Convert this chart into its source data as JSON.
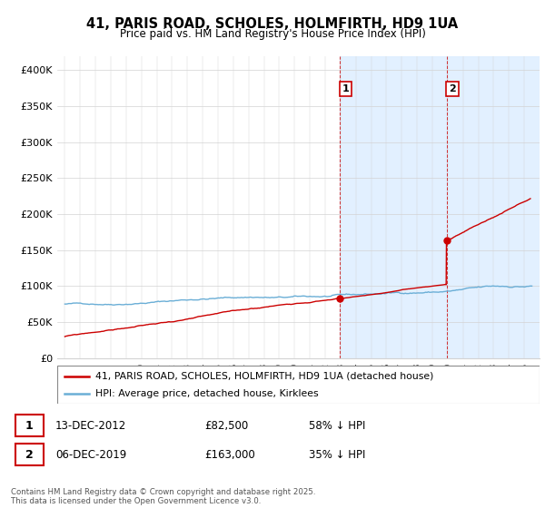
{
  "title": "41, PARIS ROAD, SCHOLES, HOLMFIRTH, HD9 1UA",
  "subtitle": "Price paid vs. HM Land Registry's House Price Index (HPI)",
  "legend_line1": "41, PARIS ROAD, SCHOLES, HOLMFIRTH, HD9 1UA (detached house)",
  "legend_line2": "HPI: Average price, detached house, Kirklees",
  "annotation1_label": "1",
  "annotation1_date": "13-DEC-2012",
  "annotation1_price": "£82,500",
  "annotation1_hpi": "58% ↓ HPI",
  "annotation2_label": "2",
  "annotation2_date": "06-DEC-2019",
  "annotation2_price": "£163,000",
  "annotation2_hpi": "35% ↓ HPI",
  "footnote": "Contains HM Land Registry data © Crown copyright and database right 2025.\nThis data is licensed under the Open Government Licence v3.0.",
  "hpi_color": "#6aaed6",
  "price_color": "#cc0000",
  "background_color": "#ffffff",
  "highlight_color": "#ddeeff",
  "annotation_color": "#cc0000",
  "ylim": [
    0,
    420000
  ],
  "yticks": [
    0,
    50000,
    100000,
    150000,
    200000,
    250000,
    300000,
    350000,
    400000
  ],
  "ytick_labels": [
    "£0",
    "£50K",
    "£100K",
    "£150K",
    "£200K",
    "£250K",
    "£300K",
    "£350K",
    "£400K"
  ],
  "sale1_x": 2012.95,
  "sale1_y": 82500,
  "sale2_x": 2019.92,
  "sale2_y": 163000,
  "xmin": 1994.5,
  "xmax": 2026.0
}
